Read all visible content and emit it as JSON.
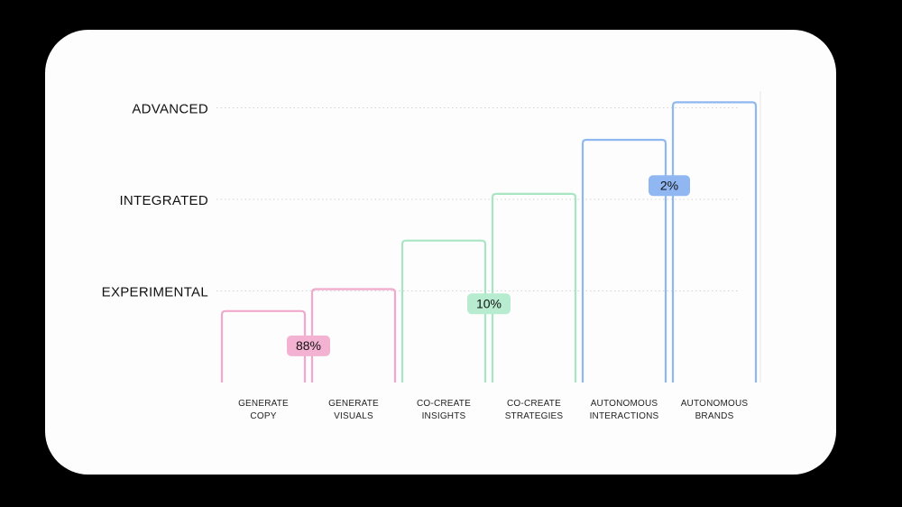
{
  "chart_data": {
    "type": "bar",
    "title": "",
    "xlabel": "",
    "ylabel": "",
    "levels": [
      "EXPERIMENTAL",
      "INTEGRATED",
      "ADVANCED"
    ],
    "ylim": [
      0,
      3.06
    ],
    "categories": [
      [
        "GENERATE",
        "COPY"
      ],
      [
        "GENERATE",
        "VISUALS"
      ],
      [
        "CO-CREATE",
        "INSIGHTS"
      ],
      [
        "CO-CREATE",
        "STRATEGIES"
      ],
      [
        "AUTONOMOUS",
        "INTERACTIONS"
      ],
      [
        "AUTONOMOUS",
        "BRANDS"
      ]
    ],
    "values": [
      0.78,
      1.02,
      1.55,
      2.06,
      2.65,
      3.06
    ],
    "groups": [
      {
        "label": "88%",
        "color": "#f1a8cc",
        "badge_color": "#f3b2d1",
        "bars": [
          0,
          1
        ],
        "badge_level": 0.4
      },
      {
        "label": "10%",
        "color": "#a8e6c3",
        "badge_color": "#b7ecd0",
        "bars": [
          2,
          3
        ],
        "badge_level": 0.86
      },
      {
        "label": "2%",
        "color": "#90b8f0",
        "badge_color": "#91b7f3",
        "bars": [
          4,
          5
        ],
        "badge_level": 2.15
      }
    ],
    "grid": true,
    "legend": "none"
  }
}
